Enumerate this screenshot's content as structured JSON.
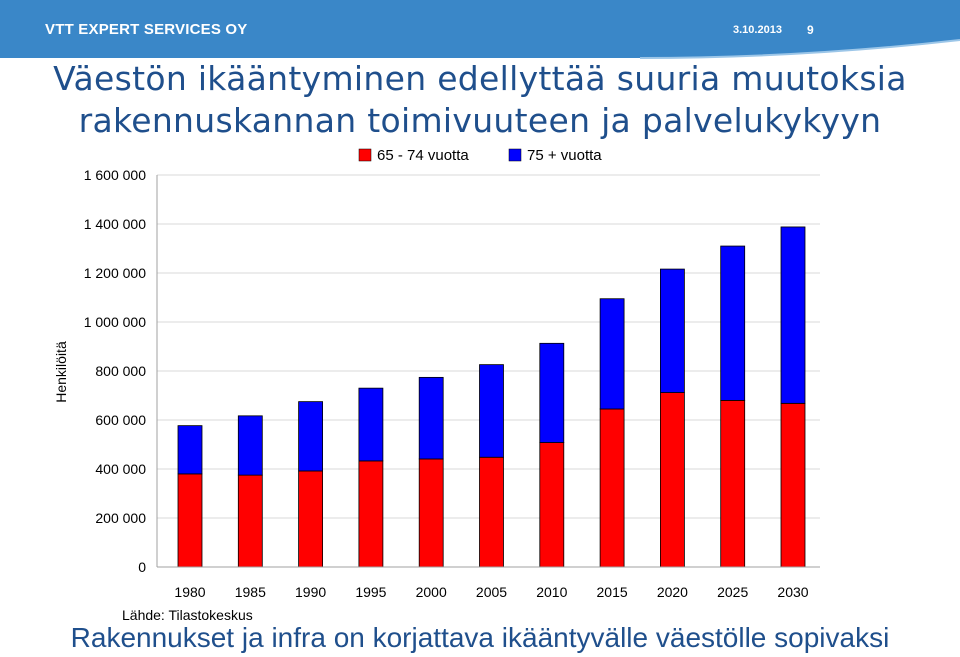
{
  "header": {
    "org_name": "VTT EXPERT SERVICES OY",
    "date": "3.10.2013",
    "page_number": "9"
  },
  "slide": {
    "title_line1": "Väestön ikääntyminen edellyttää suuria muutoksia",
    "title_line2": "rakennuskannan toimivuuteen ja palvelukykyyn",
    "source": "Lähde: Tilastokeskus",
    "footer_text": "Rakennukset ja infra on korjattava ikääntyvälle väestölle sopivaksi"
  },
  "colors": {
    "header_bg": "#3a87c8",
    "title": "#1f4f8c",
    "series_65_74": "#ff0000",
    "series_75_plus": "#0000ff"
  },
  "chart_data": {
    "type": "bar",
    "stacked": true,
    "categories": [
      "1980",
      "1985",
      "1990",
      "1995",
      "2000",
      "2005",
      "2010",
      "2015",
      "2020",
      "2025",
      "2030"
    ],
    "series": [
      {
        "name": "65 - 74 vuotta",
        "color": "#ff0000",
        "values": [
          380000,
          375000,
          392000,
          433000,
          441000,
          448000,
          508000,
          645000,
          712000,
          680000,
          668000
        ]
      },
      {
        "name": "75 + vuotta",
        "color": "#0000ff",
        "values": [
          197000,
          242000,
          283000,
          297000,
          333000,
          378000,
          405000,
          450000,
          504000,
          630000,
          720000
        ]
      }
    ],
    "ylabel": "Henkilöitä",
    "ylim": [
      0,
      1600000
    ],
    "yticks": [
      0,
      200000,
      400000,
      600000,
      800000,
      1000000,
      1200000,
      1400000,
      1600000
    ],
    "ytick_labels": [
      "0",
      "200 000",
      "400 000",
      "600 000",
      "800 000",
      "1 000 000",
      "1 200 000",
      "1 400 000",
      "1 600 000"
    ],
    "grid": true,
    "legend_position": "top"
  }
}
